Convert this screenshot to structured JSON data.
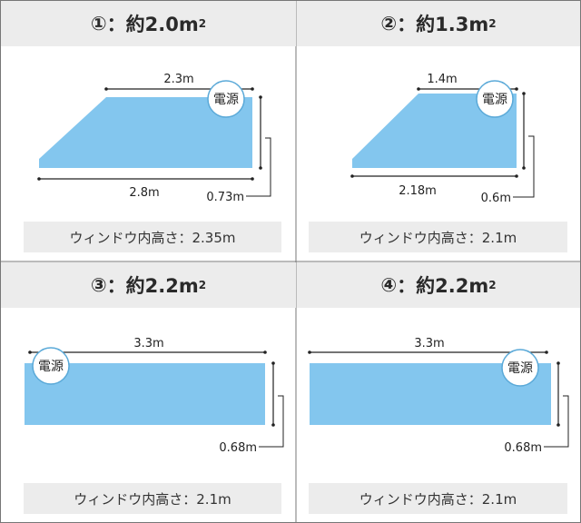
{
  "panels": [
    {
      "number": "①",
      "sep": "：",
      "area": "約2.0m",
      "area_exp": "2",
      "top_width": "2.3m",
      "bottom_width": "2.8m",
      "height": "0.73m",
      "power_label": "電源",
      "window_height": "ウィンドウ内高さ：2.35m"
    },
    {
      "number": "②",
      "sep": "：",
      "area": "約1.3m",
      "area_exp": "2",
      "top_width": "1.4m",
      "bottom_width": "2.18m",
      "height": "0.6m",
      "power_label": "電源",
      "window_height": "ウィンドウ内高さ：2.1m"
    },
    {
      "number": "③",
      "sep": "：",
      "area": "約2.2m",
      "area_exp": "2",
      "top_width": "3.3m",
      "height": "0.68m",
      "power_label": "電源",
      "window_height": "ウィンドウ内高さ：2.1m"
    },
    {
      "number": "④",
      "sep": "：",
      "area": "約2.2m",
      "area_exp": "2",
      "top_width": "3.3m",
      "height": "0.68m",
      "power_label": "電源",
      "window_height": "ウィンドウ内高さ：2.1m"
    }
  ],
  "colors": {
    "panel_fill": "#83c6ee",
    "header_bg": "#ececec",
    "badge_stroke": "#5aa9d8",
    "border": "#777777"
  }
}
